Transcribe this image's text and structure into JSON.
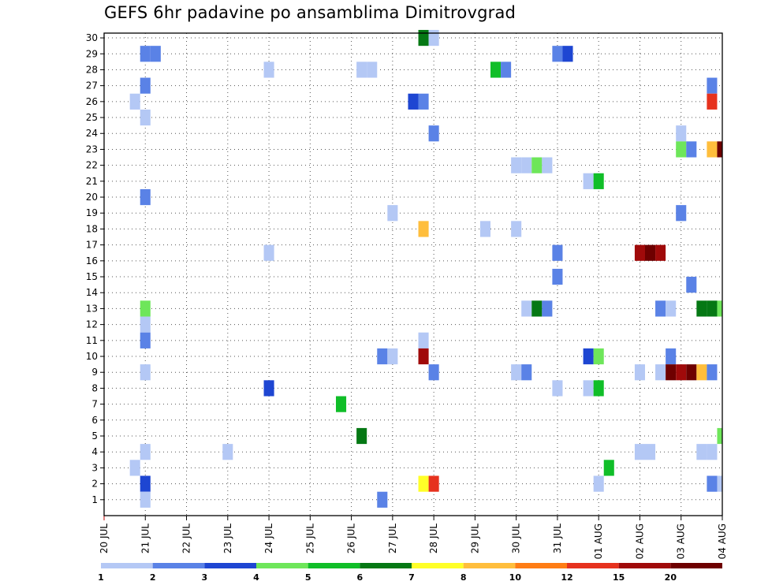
{
  "chart_data": {
    "type": "heatmap",
    "title": "GEFS 6hr padavine po ansamblima Dimitrovgrad",
    "x_ticks": [
      "20 JUL",
      "21 JUL",
      "22 JUL",
      "23 JUL",
      "24 JUL",
      "25 JUL",
      "26 JUL",
      "27 JUL",
      "28 JUL",
      "29 JUL",
      "30 JUL",
      "31 JUL",
      "01 AUG",
      "02 AUG",
      "03 AUG",
      "04 AUG"
    ],
    "y_ticks": [
      "1",
      "2",
      "3",
      "4",
      "5",
      "6",
      "7",
      "8",
      "9",
      "10",
      "11",
      "12",
      "13",
      "14",
      "15",
      "16",
      "17",
      "18",
      "19",
      "20",
      "21",
      "22",
      "23",
      "24",
      "25",
      "26",
      "27",
      "28",
      "29",
      "30"
    ],
    "x_range_days": [
      0,
      15
    ],
    "member_range": [
      1,
      30
    ],
    "grid": "dotted",
    "colorbar": {
      "position": "bottom",
      "labels": [
        "1",
        "2",
        "3",
        "4",
        "5",
        "6",
        "7",
        "8",
        "10",
        "12",
        "15",
        "20"
      ],
      "colors": [
        "#b4c8f5",
        "#5a82e6",
        "#1e46d2",
        "#6ee65a",
        "#10be28",
        "#057814",
        "#ffff28",
        "#ffbe3c",
        "#ff7d14",
        "#e6321e",
        "#a00a0a",
        "#6e0000"
      ]
    },
    "cells": [
      {
        "member": 30,
        "day": 7.75,
        "level": 6
      },
      {
        "member": 30,
        "day": 8.0,
        "level": 1
      },
      {
        "member": 29,
        "day": 1.0,
        "level": 2
      },
      {
        "member": 29,
        "day": 1.25,
        "level": 2
      },
      {
        "member": 29,
        "day": 11.0,
        "level": 2
      },
      {
        "member": 29,
        "day": 11.25,
        "level": 3
      },
      {
        "member": 28,
        "day": 4.0,
        "level": 1
      },
      {
        "member": 28,
        "day": 6.25,
        "level": 1
      },
      {
        "member": 28,
        "day": 6.5,
        "level": 1
      },
      {
        "member": 28,
        "day": 9.5,
        "level": 5
      },
      {
        "member": 28,
        "day": 9.75,
        "level": 2
      },
      {
        "member": 27,
        "day": 1.0,
        "level": 2
      },
      {
        "member": 27,
        "day": 14.75,
        "level": 2
      },
      {
        "member": 26,
        "day": 0.75,
        "level": 1
      },
      {
        "member": 26,
        "day": 7.5,
        "level": 3
      },
      {
        "member": 26,
        "day": 7.75,
        "level": 2
      },
      {
        "member": 26,
        "day": 14.75,
        "level": 10
      },
      {
        "member": 25,
        "day": 1.0,
        "level": 1
      },
      {
        "member": 24,
        "day": 8.0,
        "level": 2
      },
      {
        "member": 24,
        "day": 14.0,
        "level": 1
      },
      {
        "member": 23,
        "day": 14.0,
        "level": 4
      },
      {
        "member": 23,
        "day": 14.25,
        "level": 2
      },
      {
        "member": 23,
        "day": 14.75,
        "level": 8
      },
      {
        "member": 23,
        "day": 15.0,
        "level": 12
      },
      {
        "member": 22,
        "day": 10.0,
        "level": 1
      },
      {
        "member": 22,
        "day": 10.25,
        "level": 1
      },
      {
        "member": 22,
        "day": 10.5,
        "level": 4
      },
      {
        "member": 22,
        "day": 10.75,
        "level": 1
      },
      {
        "member": 21,
        "day": 11.75,
        "level": 1
      },
      {
        "member": 21,
        "day": 12.0,
        "level": 5
      },
      {
        "member": 20,
        "day": 1.0,
        "level": 2
      },
      {
        "member": 19,
        "day": 7.0,
        "level": 1
      },
      {
        "member": 19,
        "day": 14.0,
        "level": 2
      },
      {
        "member": 18,
        "day": 7.75,
        "level": 8
      },
      {
        "member": 18,
        "day": 9.25,
        "level": 1
      },
      {
        "member": 18,
        "day": 10.0,
        "level": 1
      },
      {
        "member": 16.5,
        "day": 4.0,
        "level": 1
      },
      {
        "member": 16.5,
        "day": 11.0,
        "level": 2
      },
      {
        "member": 16.5,
        "day": 13.0,
        "level": 11
      },
      {
        "member": 16.5,
        "day": 13.25,
        "level": 12
      },
      {
        "member": 16.5,
        "day": 13.5,
        "level": 11
      },
      {
        "member": 15,
        "day": 11.0,
        "level": 2
      },
      {
        "member": 14.5,
        "day": 14.25,
        "level": 2
      },
      {
        "member": 13,
        "day": 1.0,
        "level": 4
      },
      {
        "member": 13,
        "day": 10.25,
        "level": 1
      },
      {
        "member": 13,
        "day": 10.5,
        "level": 6
      },
      {
        "member": 13,
        "day": 10.75,
        "level": 2
      },
      {
        "member": 13,
        "day": 13.5,
        "level": 2
      },
      {
        "member": 13,
        "day": 13.75,
        "level": 1
      },
      {
        "member": 13,
        "day": 14.5,
        "level": 6
      },
      {
        "member": 13,
        "day": 14.75,
        "level": 6
      },
      {
        "member": 13,
        "day": 15.0,
        "level": 4
      },
      {
        "member": 12,
        "day": 1.0,
        "level": 1
      },
      {
        "member": 11,
        "day": 1.0,
        "level": 2
      },
      {
        "member": 11,
        "day": 7.75,
        "level": 1
      },
      {
        "member": 10,
        "day": 6.75,
        "level": 2
      },
      {
        "member": 10,
        "day": 7.0,
        "level": 1
      },
      {
        "member": 10,
        "day": 7.75,
        "level": 11
      },
      {
        "member": 10,
        "day": 11.75,
        "level": 3
      },
      {
        "member": 10,
        "day": 12.0,
        "level": 4
      },
      {
        "member": 10,
        "day": 13.75,
        "level": 2
      },
      {
        "member": 9,
        "day": 1.0,
        "level": 1
      },
      {
        "member": 9,
        "day": 8.0,
        "level": 2
      },
      {
        "member": 9,
        "day": 10.0,
        "level": 1
      },
      {
        "member": 9,
        "day": 10.25,
        "level": 2
      },
      {
        "member": 9,
        "day": 13.0,
        "level": 1
      },
      {
        "member": 9,
        "day": 13.5,
        "level": 1
      },
      {
        "member": 9,
        "day": 13.75,
        "level": 12
      },
      {
        "member": 9,
        "day": 14.0,
        "level": 11
      },
      {
        "member": 9,
        "day": 14.25,
        "level": 12
      },
      {
        "member": 9,
        "day": 14.5,
        "level": 8
      },
      {
        "member": 9,
        "day": 14.75,
        "level": 2
      },
      {
        "member": 8,
        "day": 4.0,
        "level": 3
      },
      {
        "member": 8,
        "day": 11.0,
        "level": 1
      },
      {
        "member": 8,
        "day": 11.75,
        "level": 1
      },
      {
        "member": 8,
        "day": 12.0,
        "level": 5
      },
      {
        "member": 7,
        "day": 5.75,
        "level": 5
      },
      {
        "member": 5,
        "day": 6.25,
        "level": 6
      },
      {
        "member": 5,
        "day": 15.0,
        "level": 4
      },
      {
        "member": 4,
        "day": 1.0,
        "level": 1
      },
      {
        "member": 4,
        "day": 3.0,
        "level": 1
      },
      {
        "member": 4,
        "day": 13.0,
        "level": 1
      },
      {
        "member": 4,
        "day": 13.25,
        "level": 1
      },
      {
        "member": 4,
        "day": 14.5,
        "level": 1
      },
      {
        "member": 4,
        "day": 14.75,
        "level": 1
      },
      {
        "member": 3,
        "day": 0.75,
        "level": 1
      },
      {
        "member": 3,
        "day": 12.25,
        "level": 5
      },
      {
        "member": 2,
        "day": 1.0,
        "level": 3
      },
      {
        "member": 2,
        "day": 7.75,
        "level": 7
      },
      {
        "member": 2,
        "day": 8.0,
        "level": 10
      },
      {
        "member": 2,
        "day": 12.0,
        "level": 1
      },
      {
        "member": 2,
        "day": 14.75,
        "level": 2
      },
      {
        "member": 2,
        "day": 15.0,
        "level": 1
      },
      {
        "member": 1,
        "day": 1.0,
        "level": 1
      },
      {
        "member": 1,
        "day": 6.75,
        "level": 2
      }
    ]
  }
}
